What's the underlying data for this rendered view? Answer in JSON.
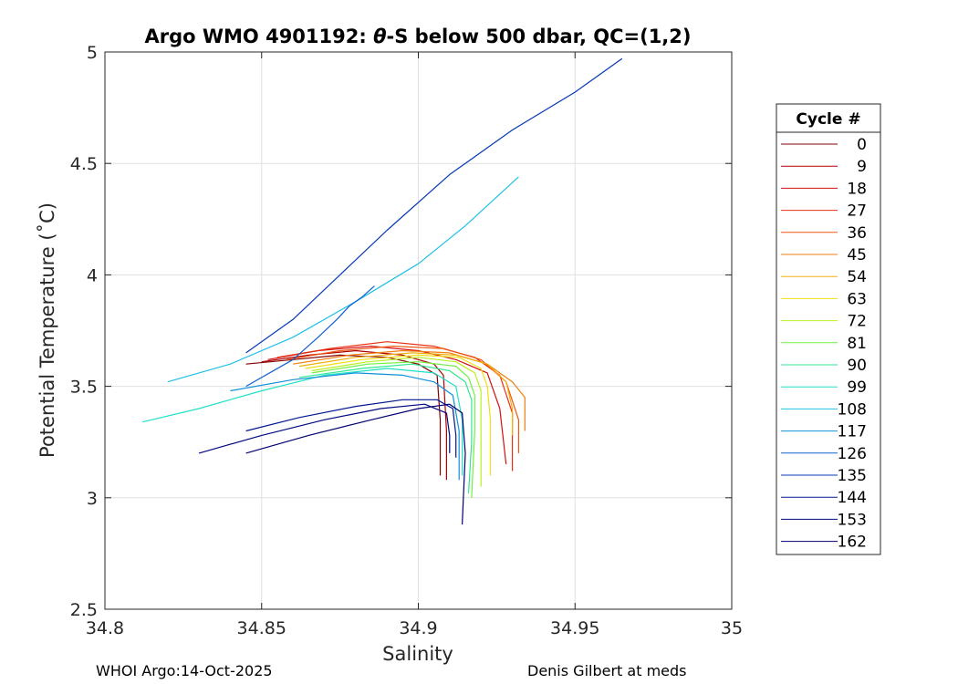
{
  "chart_data": {
    "type": "line",
    "title_prefix": "Argo WMO 4901192: ",
    "title_theta": "θ",
    "title_suffix": "-S below 500 dbar,  QC=(1,2)",
    "xlabel": "Salinity",
    "ylabel": "Potential Temperature (˚C)",
    "xlim": [
      34.8,
      35
    ],
    "ylim": [
      2.5,
      5
    ],
    "xticks": [
      34.8,
      34.85,
      34.9,
      34.95,
      35
    ],
    "xtick_labels": [
      "34.8",
      "34.85",
      "34.9",
      "34.95",
      "35"
    ],
    "yticks": [
      2.5,
      3,
      3.5,
      4,
      4.5,
      5
    ],
    "ytick_labels": [
      "2.5",
      "3",
      "3.5",
      "4",
      "4.5",
      "5"
    ],
    "grid": true,
    "legend": {
      "title": "Cycle #",
      "placement": "outside-right",
      "entries": [
        {
          "label": "0",
          "color": "#800000"
        },
        {
          "label": "9",
          "color": "#b00000"
        },
        {
          "label": "18",
          "color": "#d41010"
        },
        {
          "label": "27",
          "color": "#e83010"
        },
        {
          "label": "36",
          "color": "#f05510"
        },
        {
          "label": "45",
          "color": "#f08010"
        },
        {
          "label": "54",
          "color": "#f0b010"
        },
        {
          "label": "63",
          "color": "#f0e010"
        },
        {
          "label": "72",
          "color": "#b8f020"
        },
        {
          "label": "81",
          "color": "#70f040"
        },
        {
          "label": "90",
          "color": "#30e890"
        },
        {
          "label": "99",
          "color": "#20e0c8"
        },
        {
          "label": "108",
          "color": "#20c0e8"
        },
        {
          "label": "117",
          "color": "#1090d8"
        },
        {
          "label": "126",
          "color": "#1060d0"
        },
        {
          "label": "135",
          "color": "#0838b8"
        },
        {
          "label": "144",
          "color": "#001890"
        },
        {
          "label": "153",
          "color": "#000a80"
        },
        {
          "label": "162",
          "color": "#000070"
        }
      ]
    },
    "series": [
      {
        "color": "#800000",
        "x": [
          34.845,
          34.86,
          34.875,
          34.89,
          34.9,
          34.906,
          34.907,
          34.907
        ],
        "y": [
          3.6,
          3.62,
          3.64,
          3.63,
          3.6,
          3.55,
          3.35,
          3.1
        ]
      },
      {
        "color": "#b00000",
        "x": [
          34.85,
          34.865,
          34.88,
          34.895,
          34.905,
          34.908,
          34.909,
          34.909
        ],
        "y": [
          3.61,
          3.64,
          3.66,
          3.64,
          3.6,
          3.55,
          3.3,
          3.08
        ]
      },
      {
        "color": "#d41010",
        "x": [
          34.852,
          34.868,
          34.885,
          34.9,
          34.912,
          34.922,
          34.926,
          34.928
        ],
        "y": [
          3.62,
          3.66,
          3.68,
          3.66,
          3.62,
          3.56,
          3.4,
          3.15
        ]
      },
      {
        "color": "#e83010",
        "x": [
          34.855,
          34.872,
          34.89,
          34.905,
          34.918,
          34.926,
          34.93,
          34.93
        ],
        "y": [
          3.63,
          3.67,
          3.7,
          3.68,
          3.63,
          3.55,
          3.38,
          3.12
        ]
      },
      {
        "color": "#f05510",
        "x": [
          34.858,
          34.875,
          34.892,
          34.908,
          34.92,
          34.928,
          34.932,
          34.932
        ],
        "y": [
          3.62,
          3.66,
          3.68,
          3.67,
          3.62,
          3.52,
          3.35,
          3.2
        ]
      },
      {
        "color": "#f08010",
        "x": [
          34.86,
          34.878,
          34.895,
          34.91,
          34.922,
          34.93,
          34.934,
          34.934
        ],
        "y": [
          3.6,
          3.64,
          3.66,
          3.65,
          3.6,
          3.52,
          3.45,
          3.3
        ]
      },
      {
        "color": "#f0b010",
        "x": [
          34.862,
          34.88,
          34.898,
          34.912,
          34.922,
          34.928,
          34.93,
          34.93
        ],
        "y": [
          3.59,
          3.63,
          3.65,
          3.64,
          3.6,
          3.52,
          3.4,
          3.28
        ]
      },
      {
        "color": "#f0e010",
        "x": [
          34.864,
          34.882,
          34.9,
          34.913,
          34.92,
          34.922,
          34.923,
          34.923
        ],
        "y": [
          3.58,
          3.62,
          3.64,
          3.63,
          3.58,
          3.5,
          3.35,
          3.1
        ]
      },
      {
        "color": "#b8f020",
        "x": [
          34.866,
          34.884,
          34.9,
          34.912,
          34.918,
          34.92,
          34.92,
          34.92
        ],
        "y": [
          3.57,
          3.61,
          3.63,
          3.61,
          3.56,
          3.48,
          3.3,
          3.05
        ]
      },
      {
        "color": "#70f040",
        "x": [
          34.866,
          34.884,
          34.9,
          34.912,
          34.916,
          34.918,
          34.918,
          34.917
        ],
        "y": [
          3.56,
          3.6,
          3.61,
          3.59,
          3.54,
          3.46,
          3.3,
          3.0
        ]
      },
      {
        "color": "#30e890",
        "x": [
          34.862,
          34.882,
          34.898,
          34.91,
          34.915,
          34.917,
          34.917,
          34.916
        ],
        "y": [
          3.54,
          3.58,
          3.6,
          3.57,
          3.52,
          3.44,
          3.25,
          3.02
        ]
      },
      {
        "color": "#20e0c8",
        "x": [
          34.812,
          34.83,
          34.85,
          34.87,
          34.89,
          34.905,
          34.912,
          34.914,
          34.914
        ],
        "y": [
          3.34,
          3.4,
          3.48,
          3.55,
          3.58,
          3.56,
          3.5,
          3.35,
          3.1
        ]
      },
      {
        "color": "#20c0e8",
        "x": [
          34.82,
          34.84,
          34.86,
          34.88,
          34.9,
          34.915,
          34.932
        ],
        "y": [
          3.52,
          3.6,
          3.72,
          3.88,
          4.05,
          4.22,
          4.44
        ]
      },
      {
        "color": "#1090d8",
        "x": [
          34.84,
          34.86,
          34.88,
          34.895,
          34.905,
          34.911,
          34.913,
          34.913
        ],
        "y": [
          3.48,
          3.53,
          3.56,
          3.55,
          3.52,
          3.46,
          3.3,
          3.08
        ]
      },
      {
        "color": "#1060d0",
        "x": [
          34.845,
          34.86,
          34.868,
          34.874,
          34.878,
          34.882,
          34.886
        ],
        "y": [
          3.5,
          3.62,
          3.72,
          3.8,
          3.86,
          3.9,
          3.95
        ]
      },
      {
        "color": "#0838b8",
        "x": [
          34.845,
          34.86,
          34.875,
          34.89,
          34.91,
          34.93,
          34.95,
          34.965
        ],
        "y": [
          3.65,
          3.8,
          4.0,
          4.2,
          4.45,
          4.65,
          4.82,
          4.97
        ]
      },
      {
        "color": "#001890",
        "x": [
          34.845,
          34.862,
          34.88,
          34.895,
          34.906,
          34.911,
          34.912,
          34.912
        ],
        "y": [
          3.3,
          3.36,
          3.41,
          3.44,
          3.44,
          3.4,
          3.28,
          3.18
        ]
      },
      {
        "color": "#000a80",
        "x": [
          34.83,
          34.85,
          34.87,
          34.888,
          34.902,
          34.909,
          34.91,
          34.91
        ],
        "y": [
          3.2,
          3.28,
          3.35,
          3.4,
          3.42,
          3.38,
          3.28,
          3.2
        ]
      },
      {
        "color": "#000070",
        "x": [
          34.845,
          34.865,
          34.885,
          34.9,
          34.91,
          34.914,
          34.915,
          34.914
        ],
        "y": [
          3.2,
          3.28,
          3.35,
          3.4,
          3.42,
          3.38,
          3.2,
          2.88
        ]
      }
    ]
  },
  "footer": {
    "left": "WHOI Argo:14-Oct-2025",
    "right": "Denis Gilbert at meds"
  }
}
